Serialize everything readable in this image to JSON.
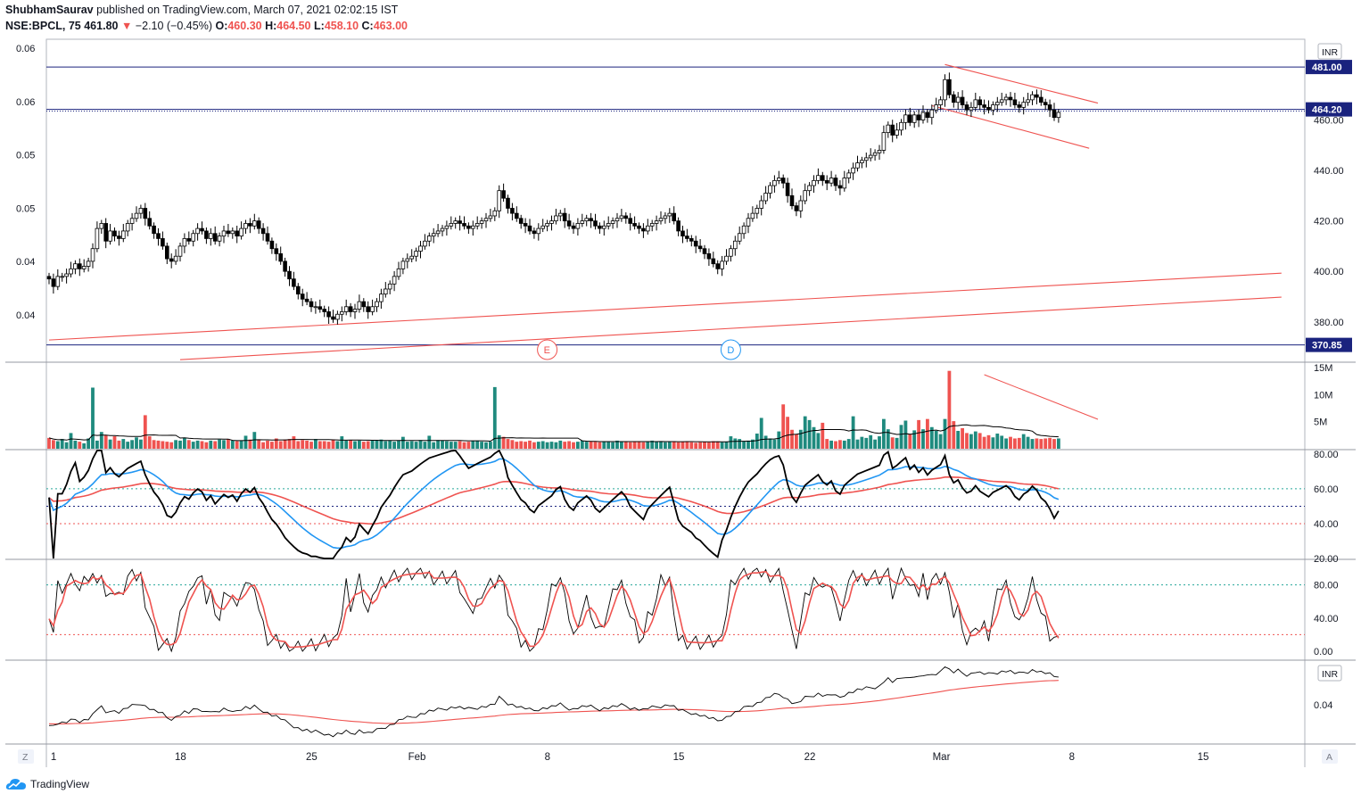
{
  "header": {
    "author": "ShubhamSaurav",
    "published": "published on TradingView.com, March 07, 2021 02:02:15 IST",
    "symbol": "NSE:BPCL, 75",
    "last": "461.80",
    "change": "−2.10 (−0.45%)",
    "o_label": "O:",
    "o": "460.30",
    "h_label": "H:",
    "h": "464.50",
    "l_label": "L:",
    "l": "458.10",
    "c_label": "C:",
    "c": "463.00"
  },
  "footer": {
    "brand": "TradingView"
  },
  "colors": {
    "up": "#26a69a",
    "down": "#ef5350",
    "blue": "#2196f3",
    "navy": "#1a237e",
    "red": "#ef5350"
  },
  "chart_data": [
    {
      "type": "candlestick",
      "currency": "INR",
      "right_axis": {
        "ticks": [
          "460.00",
          "440.00",
          "420.00",
          "400.00",
          "380.00"
        ],
        "ylim": [
          364,
          492
        ]
      },
      "left_axis_ticks": [
        "0.06",
        "0.06",
        "0.05",
        "0.05",
        "0.04",
        "0.04"
      ],
      "price_labels": [
        {
          "value": 481.0,
          "text": "481.00",
          "color": "#1a237e"
        },
        {
          "value": 464.2,
          "text": "464.20",
          "color": "#1a237e"
        },
        {
          "value": 370.85,
          "text": "370.85",
          "color": "#1a237e"
        }
      ],
      "horizontal_lines": [
        481.0,
        464.2,
        370.85
      ],
      "event_markers": [
        {
          "label": "E",
          "date_index": 114,
          "color": "#ef5350"
        },
        {
          "label": "D",
          "date_index": 156,
          "color": "#2196f3"
        }
      ],
      "trend_lines": [
        {
          "from": [
            0,
            372.8
          ],
          "to": [
            282,
            399.3
          ]
        },
        {
          "from": [
            30,
            365.0
          ],
          "to": [
            282,
            389.8
          ]
        },
        {
          "from": [
            205,
            482.0
          ],
          "to": [
            240,
            466.7
          ]
        },
        {
          "from": [
            202,
            465.7
          ],
          "to": [
            238,
            448.8
          ]
        }
      ],
      "closes": [
        397,
        394,
        398,
        398,
        399,
        401,
        403,
        401,
        402,
        404,
        409,
        417,
        419,
        412,
        416,
        414,
        413,
        416,
        419,
        421,
        423,
        425,
        421,
        418,
        415,
        413,
        410,
        405,
        404,
        406,
        410,
        413,
        412,
        415,
        417,
        416,
        413,
        415,
        412,
        414,
        416,
        415,
        416,
        414,
        417,
        419,
        418,
        420,
        417,
        415,
        412,
        409,
        407,
        404,
        400,
        397,
        394,
        391,
        389,
        388,
        386,
        386,
        385,
        384,
        382,
        381,
        383,
        384,
        386,
        384,
        385,
        388,
        386,
        384,
        386,
        388,
        391,
        393,
        395,
        398,
        401,
        404,
        405,
        406,
        408,
        410,
        412,
        414,
        415,
        416,
        417,
        418,
        419,
        420,
        419,
        418,
        417,
        418,
        419,
        420,
        421,
        422,
        424,
        432,
        429,
        425,
        423,
        421,
        419,
        418,
        416,
        415,
        417,
        418,
        419,
        420,
        422,
        423,
        420,
        418,
        417,
        419,
        420,
        421,
        420,
        418,
        417,
        418,
        419,
        420,
        421,
        422,
        421,
        419,
        418,
        417,
        416,
        418,
        419,
        420,
        421,
        422,
        423,
        420,
        416,
        414,
        413,
        412,
        410,
        409,
        407,
        405,
        403,
        401,
        404,
        406,
        409,
        412,
        415,
        418,
        421,
        423,
        425,
        428,
        431,
        434,
        436,
        437,
        435,
        430,
        426,
        424,
        428,
        432,
        434,
        436,
        438,
        436,
        435,
        437,
        434,
        433,
        437,
        439,
        441,
        443,
        444,
        445,
        446,
        447,
        448,
        455,
        458,
        454,
        456,
        459,
        462,
        459,
        462,
        460,
        463,
        461,
        464,
        466,
        468,
        476,
        470,
        467,
        469,
        466,
        464,
        465,
        468,
        466,
        465,
        464,
        466,
        467,
        468,
        469,
        468,
        466,
        465,
        467,
        468,
        470,
        469,
        467,
        466,
        464,
        461,
        463
      ]
    },
    {
      "type": "bar",
      "name": "volume",
      "right_axis": {
        "ticks": [
          "15M",
          "10M",
          "5M"
        ],
        "ylim": [
          0,
          16
        ]
      },
      "values": [
        2.0,
        1.6,
        1.4,
        1.8,
        1.2,
        2.9,
        1.5,
        1.3,
        1.0,
        1.9,
        11.3,
        1.5,
        3.1,
        2.5,
        1.7,
        2.3,
        1.5,
        1.8,
        1.3,
        1.6,
        2.1,
        1.7,
        6.2,
        2.3,
        1.6,
        1.5,
        1.4,
        1.3,
        1.2,
        1.6,
        1.5,
        2.0,
        1.6,
        1.3,
        1.5,
        1.4,
        1.2,
        1.5,
        1.4,
        1.7,
        1.6,
        1.8,
        1.5,
        1.4,
        1.5,
        2.4,
        1.7,
        3.1,
        1.6,
        1.2,
        1.5,
        1.3,
        1.9,
        1.4,
        1.7,
        1.8,
        2.3,
        1.4,
        1.6,
        1.5,
        1.3,
        1.8,
        1.4,
        1.4,
        1.3,
        1.7,
        1.4,
        2.3,
        1.5,
        1.6,
        1.4,
        1.5,
        1.3,
        1.4,
        1.5,
        1.6,
        1.7,
        1.4,
        1.5,
        1.3,
        1.5,
        2.2,
        1.3,
        1.4,
        1.3,
        1.6,
        1.3,
        2.4,
        1.2,
        1.6,
        1.5,
        1.4,
        1.3,
        1.3,
        1.4,
        1.2,
        1.3,
        1.4,
        1.5,
        1.3,
        1.2,
        1.3,
        11.4,
        2.5,
        2.2,
        1.8,
        1.6,
        1.3,
        1.4,
        1.3,
        1.5,
        1.2,
        1.3,
        1.4,
        1.2,
        1.3,
        1.2,
        1.5,
        1.3,
        1.4,
        1.2,
        1.3,
        1.5,
        1.3,
        1.4,
        1.3,
        1.2,
        1.3,
        1.4,
        1.2,
        1.5,
        1.3,
        1.3,
        1.2,
        1.4,
        1.3,
        1.2,
        1.3,
        1.5,
        1.3,
        1.4,
        1.2,
        1.3,
        1.4,
        1.2,
        1.3,
        1.4,
        1.2,
        1.1,
        1.2,
        1.3,
        1.2,
        1.4,
        1.3,
        1.2,
        1.3,
        2.3,
        1.9,
        1.8,
        1.4,
        1.5,
        1.7,
        2.8,
        5.7,
        2.4,
        1.9,
        1.7,
        3.2,
        8.2,
        5.9,
        3.5,
        2.7,
        3.5,
        6.0,
        5.3,
        4.0,
        2.9,
        4.8,
        1.8,
        1.5,
        1.4,
        1.6,
        1.5,
        1.8,
        6.0,
        1.7,
        2.2,
        2.0,
        2.5,
        1.7,
        2.3,
        5.5,
        3.6,
        2.1,
        2.0,
        4.4,
        5.2,
        2.7,
        3.4,
        5.3,
        3.6,
        5.5,
        4.0,
        3.3,
        2.7,
        5.5,
        14.4,
        5.1,
        3.3,
        3.8,
        2.9,
        2.7,
        3.2,
        2.9,
        2.2,
        2.5,
        2.1,
        2.8,
        2.4,
        1.9,
        2.2,
        1.9,
        2.0,
        2.7,
        2.2,
        1.8,
        1.9,
        1.8,
        1.9,
        2.0,
        1.8,
        1.9,
        1.5,
        1.6
      ]
    },
    {
      "type": "line",
      "name": "rsi",
      "right_axis": {
        "ticks": [
          "80.00",
          "60.00",
          "40.00",
          "20.00"
        ],
        "ylim": [
          20,
          82
        ]
      },
      "levels": [
        60,
        50,
        40
      ]
    },
    {
      "type": "line",
      "name": "stochastic",
      "right_axis": {
        "ticks": [
          "80.00",
          "40.00",
          "0.00"
        ],
        "ylim": [
          0,
          100
        ]
      },
      "levels": [
        80,
        20
      ]
    },
    {
      "type": "line",
      "name": "comparison",
      "currency": "INR",
      "right_axis": {
        "ticks": [
          "0.04"
        ]
      }
    }
  ],
  "x_axis": {
    "labels": [
      {
        "text": "1",
        "index": 1
      },
      {
        "text": "18",
        "index": 30
      },
      {
        "text": "25",
        "index": 60
      },
      {
        "text": "Feb",
        "index": 84
      },
      {
        "text": "8",
        "index": 114
      },
      {
        "text": "15",
        "index": 144
      },
      {
        "text": "22",
        "index": 174
      },
      {
        "text": "Mar",
        "index": 204
      },
      {
        "text": "8",
        "index": 234
      },
      {
        "text": "15",
        "index": 264
      }
    ],
    "left_button": "Z",
    "right_button": "A"
  },
  "panes": {
    "main_currency": "INR",
    "bottom_currency": "INR"
  }
}
